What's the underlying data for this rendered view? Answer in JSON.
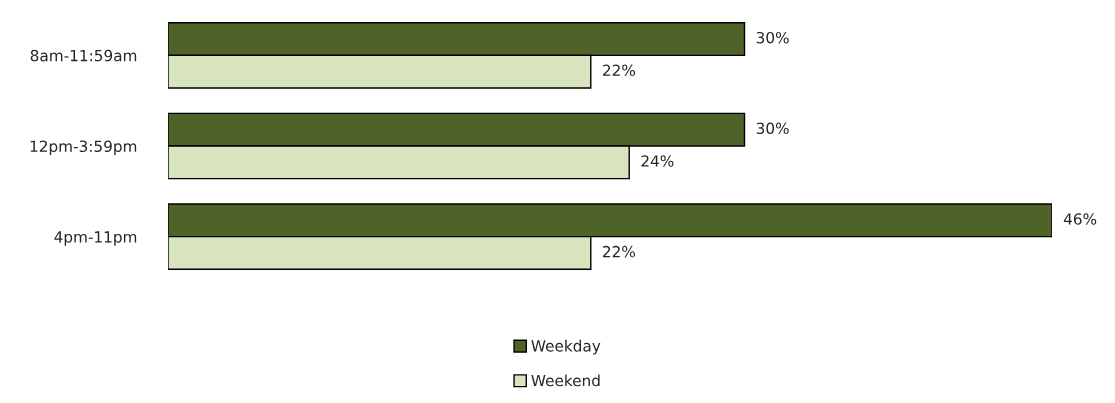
{
  "chart_data": {
    "type": "bar",
    "orientation": "horizontal",
    "categories": [
      "8am-11:59am",
      "12pm-3:59pm",
      "4pm-11pm"
    ],
    "series": [
      {
        "name": "Weekday",
        "color": "#4f6228",
        "values": [
          30,
          30,
          46
        ],
        "value_labels": [
          "30%",
          "30%",
          "46%"
        ]
      },
      {
        "name": "Weekend",
        "color": "#d7e4bd",
        "values": [
          22,
          24,
          22
        ],
        "value_labels": [
          "22%",
          "24%",
          "22%"
        ]
      }
    ],
    "xlim": [
      0,
      46
    ],
    "tick_labels": "y",
    "legend": "bottom",
    "grid": false
  }
}
